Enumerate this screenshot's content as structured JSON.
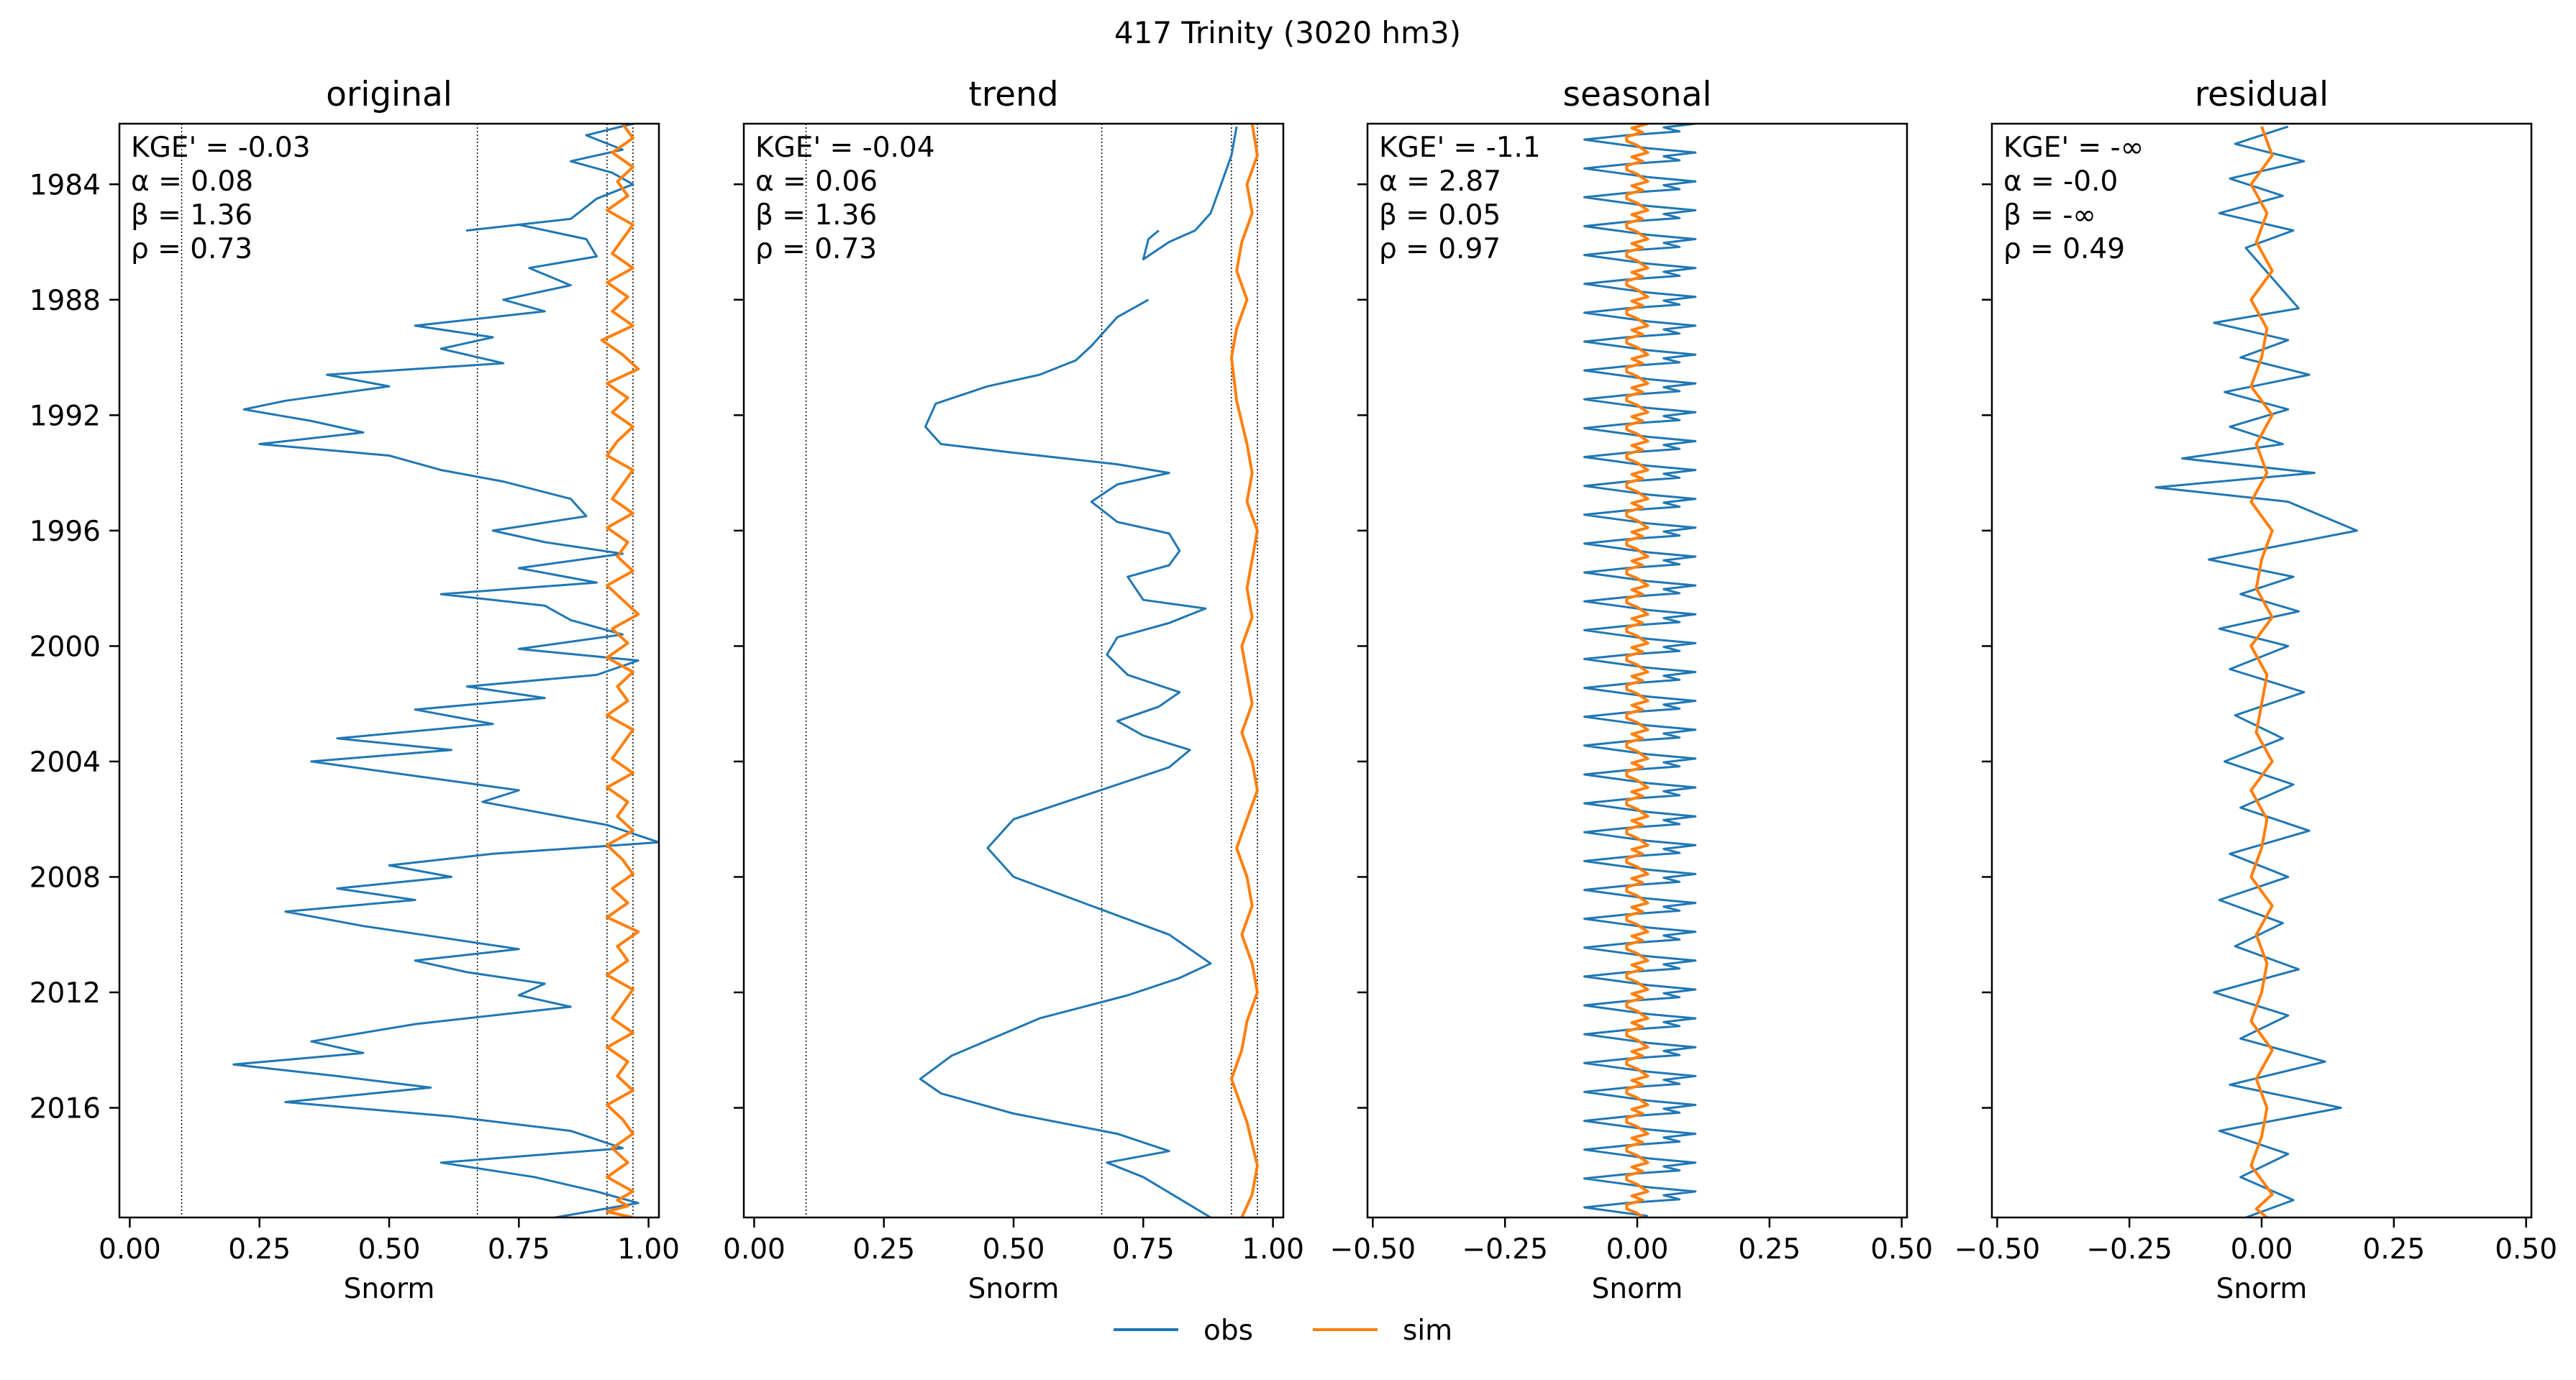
{
  "figure": {
    "suptitle": "417  Trinity (3020 hm3)"
  },
  "legend": {
    "placement": "bottom-center",
    "entries": [
      {
        "label": "obs",
        "color": "#1f77b4"
      },
      {
        "label": "sim",
        "color": "#ff7f0e"
      }
    ]
  },
  "colors": {
    "obs": "#1f77b4",
    "sim": "#ff7f0e",
    "frame": "#000000",
    "reference_line": "#000000"
  },
  "chart_data": [
    {
      "type": "line",
      "title": "original",
      "xlabel": "Snorm",
      "ylabel": "",
      "orientation": "vertical-time",
      "xlim": [
        -0.02,
        1.02
      ],
      "ylim": [
        2019.8,
        1981.9
      ],
      "x_ticks": [
        0.0,
        0.25,
        0.5,
        0.75,
        1.0
      ],
      "x_tick_labels": [
        "0.00",
        "0.25",
        "0.50",
        "0.75",
        "1.00"
      ],
      "y_ticks": [
        1984,
        1988,
        1992,
        1996,
        2000,
        2004,
        2008,
        2012,
        2016
      ],
      "y_tick_labels": [
        "1984",
        "1988",
        "1992",
        "1996",
        "2000",
        "2004",
        "2008",
        "2012",
        "2016"
      ],
      "reference_lines_x": [
        0.1,
        0.67,
        0.92,
        0.97
      ],
      "metrics": [
        "KGE' = -0.03",
        "α = 0.08",
        "β = 1.36",
        "ρ = 0.73"
      ],
      "series": [
        {
          "name": "obs",
          "x": [
            0.97,
            0.88,
            0.95,
            0.85,
            0.93,
            0.97,
            0.9,
            0.85,
            0.65,
            0.75,
            0.88,
            0.9,
            0.77,
            0.85,
            0.72,
            0.8,
            0.55,
            0.7,
            0.6,
            0.72,
            0.38,
            0.5,
            0.3,
            0.22,
            0.35,
            0.45,
            0.25,
            0.5,
            0.6,
            0.72,
            0.85,
            0.88,
            0.7,
            0.8,
            0.95,
            0.75,
            0.9,
            0.6,
            0.8,
            0.85,
            0.95,
            0.75,
            0.98,
            0.9,
            0.65,
            0.8,
            0.55,
            0.7,
            0.4,
            0.62,
            0.35,
            0.55,
            0.75,
            0.68,
            0.8,
            0.92,
            0.97,
            1.02,
            0.7,
            0.5,
            0.62,
            0.4,
            0.55,
            0.3,
            0.45,
            0.6,
            0.75,
            0.55,
            0.65,
            0.8,
            0.75,
            0.85,
            0.55,
            0.35,
            0.45,
            0.2,
            0.4,
            0.58,
            0.3,
            0.62,
            0.85,
            0.95,
            0.6,
            0.78,
            0.9,
            0.98,
            0.82
          ],
          "y": [
            1981.9,
            1982.3,
            1982.8,
            1983.2,
            1983.6,
            1984.0,
            1984.5,
            1985.2,
            1985.6,
            1985.4,
            1985.9,
            1986.5,
            1986.9,
            1987.5,
            1988.0,
            1988.4,
            1988.9,
            1989.3,
            1989.7,
            1990.2,
            1990.6,
            1991.0,
            1991.5,
            1991.8,
            1992.2,
            1992.6,
            1993.0,
            1993.4,
            1993.9,
            1994.3,
            1994.9,
            1995.5,
            1996.0,
            1996.4,
            1996.8,
            1997.3,
            1997.8,
            1998.2,
            1998.6,
            1999.1,
            1999.6,
            2000.1,
            2000.5,
            2001.0,
            2001.4,
            2001.8,
            2002.2,
            2002.7,
            2003.2,
            2003.6,
            2004.0,
            2004.5,
            2005.0,
            2005.4,
            2005.8,
            2006.2,
            2006.5,
            2006.8,
            2007.2,
            2007.6,
            2008.0,
            2008.4,
            2008.8,
            2009.2,
            2009.7,
            2010.1,
            2010.5,
            2010.9,
            2011.3,
            2011.7,
            2012.1,
            2012.5,
            2013.1,
            2013.7,
            2014.1,
            2014.5,
            2014.9,
            2015.3,
            2015.8,
            2016.3,
            2016.8,
            2017.4,
            2017.9,
            2018.4,
            2018.9,
            2019.3,
            2019.8
          ]
        },
        {
          "name": "sim",
          "x": [
            0.95,
            0.97,
            0.93,
            0.97,
            0.94,
            0.96,
            0.92,
            0.97,
            0.95,
            0.93,
            0.97,
            0.92,
            0.96,
            0.93,
            0.97,
            0.91,
            0.95,
            0.98,
            0.92,
            0.96,
            0.93,
            0.97,
            0.94,
            0.92,
            0.97,
            0.95,
            0.93,
            0.97,
            0.92,
            0.96,
            0.94,
            0.97,
            0.92,
            0.95,
            0.98,
            0.93,
            0.96,
            0.92,
            0.97,
            0.94,
            0.96,
            0.92,
            0.97,
            0.95,
            0.93,
            0.97,
            0.92,
            0.96,
            0.94,
            0.97,
            0.92,
            0.95,
            0.97,
            0.93,
            0.96,
            0.92,
            0.98,
            0.94,
            0.96,
            0.92,
            0.97,
            0.95,
            0.93,
            0.97,
            0.92,
            0.96,
            0.94,
            0.97,
            0.92,
            0.95,
            0.97,
            0.93,
            0.96,
            0.92,
            0.97,
            0.94,
            0.96,
            0.92,
            0.97
          ],
          "y": [
            1981.9,
            1982.4,
            1982.9,
            1983.4,
            1983.9,
            1984.4,
            1984.9,
            1985.4,
            1985.9,
            1986.4,
            1986.9,
            1987.4,
            1987.9,
            1988.4,
            1988.9,
            1989.4,
            1989.9,
            1990.4,
            1990.9,
            1991.4,
            1991.9,
            1992.4,
            1992.9,
            1993.4,
            1993.9,
            1994.4,
            1994.9,
            1995.4,
            1995.9,
            1996.4,
            1996.9,
            1997.4,
            1997.9,
            1998.4,
            1998.9,
            1999.4,
            1999.9,
            2000.4,
            2000.9,
            2001.4,
            2001.9,
            2002.4,
            2002.9,
            2003.4,
            2003.9,
            2004.4,
            2004.9,
            2005.4,
            2005.9,
            2006.4,
            2006.9,
            2007.4,
            2007.9,
            2008.4,
            2008.9,
            2009.4,
            2009.9,
            2010.4,
            2010.9,
            2011.4,
            2011.9,
            2012.4,
            2012.9,
            2013.4,
            2013.9,
            2014.4,
            2014.9,
            2015.4,
            2015.9,
            2016.4,
            2016.9,
            2017.4,
            2017.9,
            2018.4,
            2018.9,
            2019.2,
            2019.4,
            2019.6,
            2019.8
          ]
        }
      ]
    },
    {
      "type": "line",
      "title": "trend",
      "xlabel": "Snorm",
      "ylabel": "",
      "orientation": "vertical-time",
      "xlim": [
        -0.02,
        1.02
      ],
      "ylim": [
        2019.8,
        1981.9
      ],
      "x_ticks": [
        0.0,
        0.25,
        0.5,
        0.75,
        1.0
      ],
      "x_tick_labels": [
        "0.00",
        "0.25",
        "0.50",
        "0.75",
        "1.00"
      ],
      "y_ticks": [
        1984,
        1988,
        1992,
        1996,
        2000,
        2004,
        2008,
        2012,
        2016
      ],
      "y_tick_labels": [
        "",
        "",
        "",
        "",
        "",
        "",
        "",
        "",
        ""
      ],
      "reference_lines_x": [
        0.1,
        0.67,
        0.92,
        0.97
      ],
      "metrics": [
        "KGE' = -0.04",
        "α = 0.06",
        "β = 1.36",
        "ρ = 0.73"
      ],
      "series": [
        {
          "name": "obs",
          "x": [
            0.93,
            0.92,
            0.9,
            0.88,
            0.85,
            0.8,
            0.75,
            0.76,
            0.78
          ],
          "y": [
            1982.0,
            1983.0,
            1984.0,
            1985.0,
            1985.6,
            1986.0,
            1986.6,
            1985.9,
            1985.6
          ]
        },
        {
          "name": "obs",
          "x": [
            0.76,
            0.7,
            0.65,
            0.62,
            0.55,
            0.45,
            0.35,
            0.33,
            0.36,
            0.5,
            0.7,
            0.8,
            0.7,
            0.65,
            0.7,
            0.8,
            0.82,
            0.8,
            0.72,
            0.75,
            0.87,
            0.8,
            0.7,
            0.68,
            0.72,
            0.82,
            0.78,
            0.7,
            0.75,
            0.84,
            0.8,
            0.65,
            0.5,
            0.45,
            0.5,
            0.65,
            0.8,
            0.88,
            0.82,
            0.72,
            0.55,
            0.38,
            0.32,
            0.36,
            0.5,
            0.7,
            0.8,
            0.68,
            0.75,
            0.88
          ],
          "y": [
            1988.0,
            1988.6,
            1989.6,
            1990.1,
            1990.6,
            1991.0,
            1991.6,
            1992.4,
            1993.0,
            1993.3,
            1993.7,
            1994.0,
            1994.4,
            1995.0,
            1995.7,
            1996.1,
            1996.7,
            1997.2,
            1997.6,
            1998.4,
            1998.7,
            1999.2,
            1999.7,
            2000.3,
            2001.0,
            2001.6,
            2002.1,
            2002.6,
            2003.1,
            2003.6,
            2004.2,
            2005.1,
            2006.0,
            2007.0,
            2008.0,
            2009.0,
            2010.0,
            2011.0,
            2011.5,
            2012.1,
            2012.9,
            2014.2,
            2015.0,
            2015.5,
            2016.2,
            2016.9,
            2017.5,
            2017.9,
            2018.4,
            2019.8
          ]
        },
        {
          "name": "sim",
          "x": [
            0.96,
            0.97,
            0.95,
            0.96,
            0.94,
            0.93,
            0.95,
            0.93,
            0.92,
            0.93,
            0.95,
            0.96,
            0.95,
            0.97,
            0.96,
            0.95,
            0.96,
            0.94,
            0.95,
            0.96,
            0.94,
            0.96,
            0.97,
            0.95,
            0.93,
            0.95,
            0.96,
            0.94,
            0.96,
            0.97,
            0.95,
            0.94,
            0.92,
            0.95,
            0.97,
            0.96,
            0.94
          ],
          "y": [
            1981.9,
            1983.0,
            1984.0,
            1985.0,
            1986.0,
            1987.0,
            1988.0,
            1989.0,
            1990.0,
            1991.5,
            1993.0,
            1994.0,
            1995.0,
            1996.0,
            1997.0,
            1998.0,
            1999.0,
            2000.0,
            2001.0,
            2002.0,
            2003.0,
            2004.0,
            2005.0,
            2006.0,
            2007.0,
            2008.0,
            2009.0,
            2010.0,
            2011.0,
            2012.0,
            2013.0,
            2014.0,
            2015.0,
            2016.5,
            2018.0,
            2019.0,
            2019.8
          ]
        }
      ]
    },
    {
      "type": "line",
      "title": "seasonal",
      "xlabel": "Snorm",
      "ylabel": "",
      "orientation": "vertical-time",
      "xlim": [
        -0.51,
        0.51
      ],
      "ylim": [
        2019.8,
        1981.9
      ],
      "x_ticks": [
        -0.5,
        -0.25,
        0.0,
        0.25,
        0.5
      ],
      "x_tick_labels": [
        "−0.50",
        "−0.25",
        "0.00",
        "0.25",
        "0.50"
      ],
      "y_ticks": [
        1984,
        1988,
        1992,
        1996,
        2000,
        2004,
        2008,
        2012,
        2016
      ],
      "y_tick_labels": [
        "",
        "",
        "",
        "",
        "",
        "",
        "",
        "",
        ""
      ],
      "reference_lines_x": [],
      "metrics": [
        "KGE' = -1.1",
        "α = 2.87",
        "β = 0.05",
        "ρ = 0.97"
      ],
      "periodic": {
        "start": 1981.9,
        "end": 2019.8,
        "period_years": 1.0
      },
      "series": [
        {
          "name": "obs",
          "x": [
            0.11,
            0.05,
            0.08,
            -0.02,
            -0.1,
            -0.04,
            0.02,
            0.11
          ],
          "y_phase": [
            0.0,
            0.13,
            0.27,
            0.4,
            0.55,
            0.7,
            0.85,
            1.0
          ]
        },
        {
          "name": "sim",
          "x": [
            0.02,
            -0.01,
            0.01,
            -0.02,
            -0.02,
            0.0,
            0.01,
            0.02
          ],
          "y_phase": [
            0.0,
            0.15,
            0.3,
            0.45,
            0.6,
            0.75,
            0.88,
            1.0
          ]
        }
      ]
    },
    {
      "type": "line",
      "title": "residual",
      "xlabel": "Snorm",
      "ylabel": "",
      "orientation": "vertical-time",
      "xlim": [
        -0.51,
        0.51
      ],
      "ylim": [
        2019.8,
        1981.9
      ],
      "x_ticks": [
        -0.5,
        -0.25,
        0.0,
        0.25,
        0.5
      ],
      "x_tick_labels": [
        "−0.50",
        "−0.25",
        "0.00",
        "0.25",
        "0.50"
      ],
      "y_ticks": [
        1984,
        1988,
        1992,
        1996,
        2000,
        2004,
        2008,
        2012,
        2016
      ],
      "y_tick_labels": [
        "",
        "",
        "",
        "",
        "",
        "",
        "",
        "",
        ""
      ],
      "reference_lines_x": [],
      "metrics": [
        "KGE' = -∞",
        "α = -0.0",
        "β = -∞",
        "ρ = 0.49"
      ],
      "series": [
        {
          "name": "obs",
          "x": [
            0.05,
            -0.05,
            0.08,
            -0.06,
            0.04,
            -0.08,
            0.06,
            -0.03,
            0.07,
            -0.09,
            0.05,
            -0.04,
            0.09,
            -0.07,
            0.05,
            -0.06,
            0.04,
            -0.15,
            0.1,
            -0.2,
            0.05,
            0.18,
            -0.1,
            0.06,
            -0.04,
            0.07,
            -0.08,
            0.05,
            -0.06,
            0.08,
            -0.05,
            0.04,
            -0.07,
            0.06,
            -0.04,
            0.09,
            -0.06,
            0.05,
            -0.08,
            0.04,
            -0.05,
            0.07,
            -0.09,
            0.05,
            -0.04,
            0.12,
            -0.06,
            0.15,
            -0.08,
            0.05,
            -0.04,
            0.06,
            -0.03
          ],
          "y": [
            1982.0,
            1982.6,
            1983.2,
            1983.8,
            1984.4,
            1985.0,
            1985.6,
            1986.2,
            1988.3,
            1988.8,
            1989.4,
            1990.0,
            1990.6,
            1991.2,
            1991.8,
            1992.4,
            1993.0,
            1993.5,
            1994.0,
            1994.5,
            1995.0,
            1996.0,
            1997.0,
            1997.6,
            1998.2,
            1998.8,
            1999.4,
            2000.0,
            2000.8,
            2001.6,
            2002.4,
            2003.2,
            2004.0,
            2004.8,
            2005.6,
            2006.4,
            2007.2,
            2008.0,
            2008.8,
            2009.6,
            2010.4,
            2011.2,
            2012.0,
            2012.8,
            2013.6,
            2014.4,
            2015.2,
            2016.0,
            2016.8,
            2017.6,
            2018.4,
            2019.2,
            2019.8
          ]
        },
        {
          "name": "sim",
          "x": [
            0.0,
            0.02,
            -0.02,
            0.01,
            -0.01,
            0.02,
            -0.02,
            0.01,
            0.0,
            -0.02,
            0.02,
            -0.01,
            0.01,
            -0.02,
            0.02,
            0.0,
            -0.01,
            0.02,
            -0.02,
            0.01,
            0.0,
            -0.01,
            0.02,
            -0.02,
            0.01,
            0.0,
            -0.02,
            0.02,
            -0.01,
            0.01,
            0.0,
            -0.02,
            0.02,
            -0.01,
            0.01,
            0.0,
            -0.02,
            0.02,
            -0.01,
            0.01
          ],
          "y": [
            1982.0,
            1983.0,
            1984.0,
            1985.0,
            1986.0,
            1987.0,
            1988.0,
            1989.0,
            1990.0,
            1991.0,
            1992.0,
            1993.0,
            1994.0,
            1995.0,
            1996.0,
            1997.0,
            1998.0,
            1999.0,
            2000.0,
            2001.0,
            2002.0,
            2003.0,
            2004.0,
            2005.0,
            2006.0,
            2007.0,
            2008.0,
            2009.0,
            2010.0,
            2011.0,
            2012.0,
            2013.0,
            2014.0,
            2015.0,
            2016.0,
            2017.0,
            2018.0,
            2019.0,
            2019.5,
            2019.8
          ]
        }
      ]
    }
  ]
}
